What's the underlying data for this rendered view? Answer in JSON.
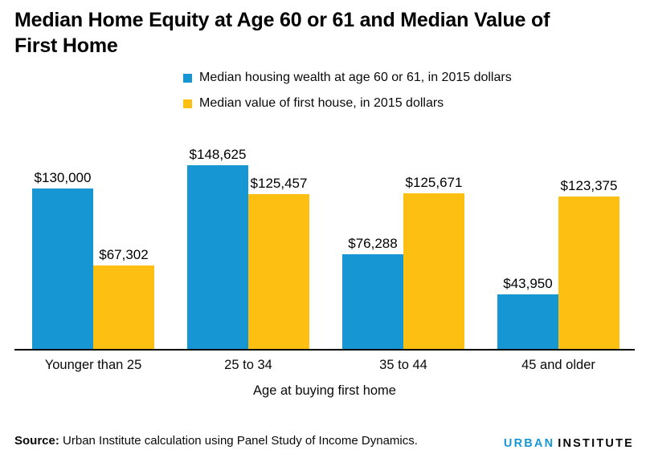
{
  "title": {
    "line1": "Median Home Equity at Age 60 or 61 and Median Value of",
    "line2": "First Home",
    "full": "Median Home Equity at Age 60 or 61 and Median Value of First Home"
  },
  "colors": {
    "blue": "#1696d2",
    "yellow": "#fdbf11",
    "text": "#0a0a0a",
    "axis": "#000000"
  },
  "chart_data": {
    "type": "bar",
    "title": "Median Home Equity at Age 60 or 61 and Median Value of First Home",
    "xlabel": "Age at buying first home",
    "ylabel": "",
    "categories": [
      "Younger than 25",
      "25 to 34",
      "35 to 44",
      "45 and older"
    ],
    "series": [
      {
        "name": "Median housing wealth at age 60 or 61, in 2015 dollars",
        "color": "#1696d2",
        "values": [
          130000,
          148625,
          76288,
          43950
        ],
        "labels": [
          "$130,000",
          "$148,625",
          "$76,288",
          "$43,950"
        ]
      },
      {
        "name": "Median value of first house, in 2015 dollars",
        "color": "#fdbf11",
        "values": [
          67302,
          125457,
          125671,
          123375
        ],
        "labels": [
          "$67,302",
          "$125,457",
          "$125,671",
          "$123,375"
        ]
      }
    ],
    "legend_position": "top-center",
    "grid": false,
    "ylim": [
      0,
      150000
    ],
    "data_labels": true
  },
  "footer": {
    "source_label": "Source:",
    "source_text": " Urban Institute calculation using Panel Study of Income Dynamics.",
    "logo_word1": "URBAN",
    "logo_word2": "INSTITUTE"
  }
}
